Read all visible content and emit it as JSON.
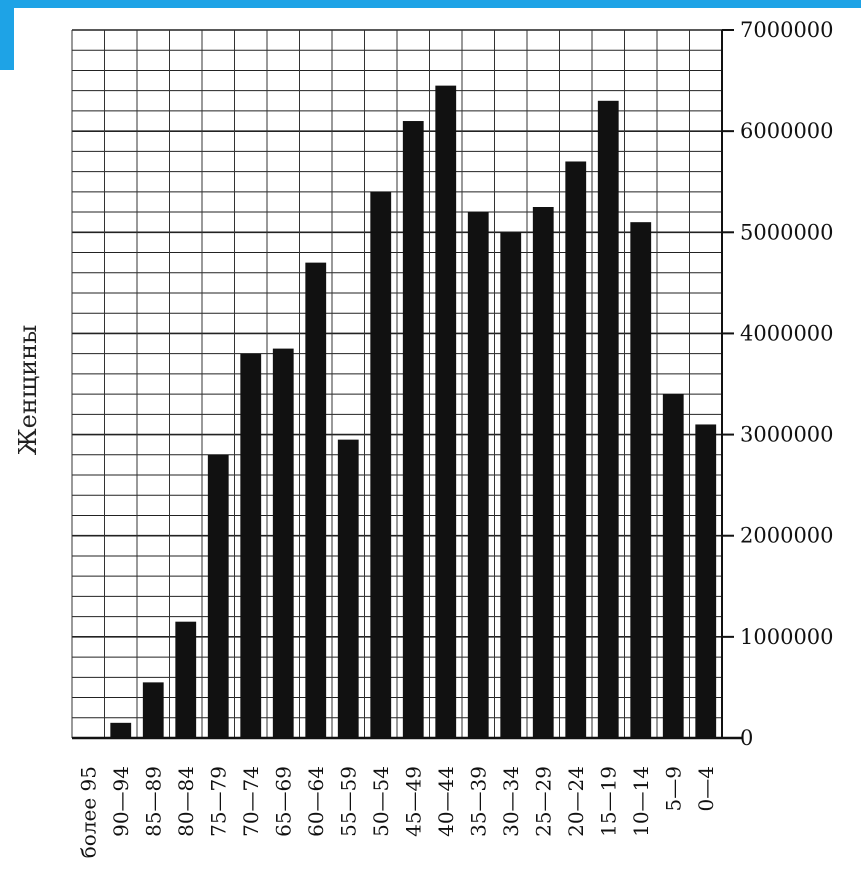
{
  "chart_data": {
    "type": "bar",
    "ylabel": "Женщины",
    "xlabel": "",
    "title": "",
    "ylim": [
      0,
      7000000
    ],
    "y_ticks": [
      {
        "value": 0,
        "label": "0"
      },
      {
        "value": 1000000,
        "label": "1000000"
      },
      {
        "value": 2000000,
        "label": "2000000"
      },
      {
        "value": 3000000,
        "label": "3000000"
      },
      {
        "value": 4000000,
        "label": "4000000"
      },
      {
        "value": 5000000,
        "label": "5000000"
      },
      {
        "value": 6000000,
        "label": "6000000"
      },
      {
        "value": 7000000,
        "label": "7000000"
      }
    ],
    "y_axis_side": "right",
    "grid": true,
    "categories": [
      "более 95",
      "90—94",
      "85—89",
      "80—84",
      "75—79",
      "70—74",
      "65—69",
      "60—64",
      "55—59",
      "50—54",
      "45—49",
      "40—44",
      "35—39",
      "30—34",
      "25—29",
      "20—24",
      "15—19",
      "10—14",
      "5—9",
      "0—4"
    ],
    "values": [
      0,
      150000,
      550000,
      1150000,
      2800000,
      3800000,
      3850000,
      4700000,
      2950000,
      5400000,
      6100000,
      6450000,
      5200000,
      5000000,
      5250000,
      5700000,
      6300000,
      5100000,
      3400000,
      3100000
    ],
    "bar_color": "#111111"
  }
}
